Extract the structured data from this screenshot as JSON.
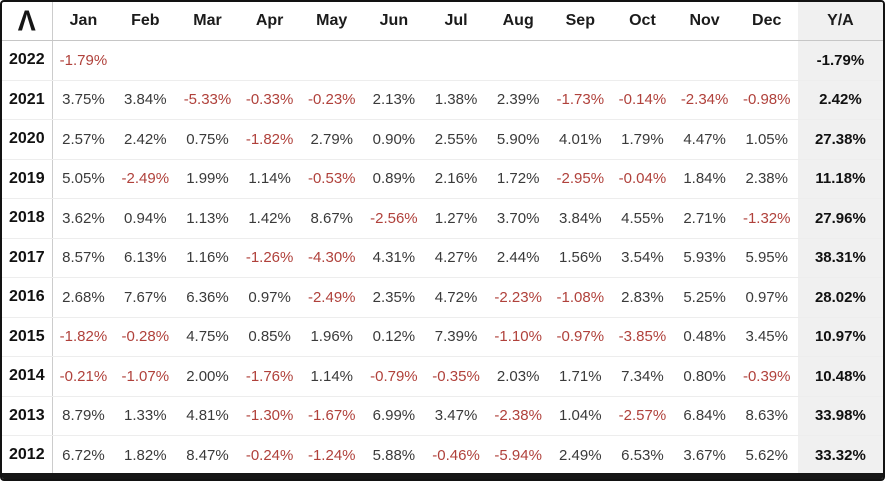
{
  "header": {
    "logo_glyph": "Λ",
    "ya_label": "Y/A"
  },
  "colors": {
    "negative_text": "#b0413b",
    "positive_text": "#3a3a3a",
    "ya_column_bg": "#f0f0f0",
    "frame_border": "#121212"
  },
  "chart_data": {
    "type": "table",
    "title": "",
    "categories": [
      "Jan",
      "Feb",
      "Mar",
      "Apr",
      "May",
      "Jun",
      "Jul",
      "Aug",
      "Sep",
      "Oct",
      "Nov",
      "Dec"
    ],
    "annual_column_label": "Y/A",
    "unit": "%",
    "rows": [
      {
        "year": "2022",
        "values": [
          -1.79,
          null,
          null,
          null,
          null,
          null,
          null,
          null,
          null,
          null,
          null,
          null
        ],
        "annual": -1.79
      },
      {
        "year": "2021",
        "values": [
          3.75,
          3.84,
          -5.33,
          -0.33,
          -0.23,
          2.13,
          1.38,
          2.39,
          -1.73,
          -0.14,
          -2.34,
          -0.98
        ],
        "annual": 2.42
      },
      {
        "year": "2020",
        "values": [
          2.57,
          2.42,
          0.75,
          -1.82,
          2.79,
          0.9,
          2.55,
          5.9,
          4.01,
          1.79,
          4.47,
          1.05
        ],
        "annual": 27.38
      },
      {
        "year": "2019",
        "values": [
          5.05,
          -2.49,
          1.99,
          1.14,
          -0.53,
          0.89,
          2.16,
          1.72,
          -2.95,
          -0.04,
          1.84,
          2.38
        ],
        "annual": 11.18
      },
      {
        "year": "2018",
        "values": [
          3.62,
          0.94,
          1.13,
          1.42,
          8.67,
          -2.56,
          1.27,
          3.7,
          3.84,
          4.55,
          2.71,
          -1.32
        ],
        "annual": 27.96
      },
      {
        "year": "2017",
        "values": [
          8.57,
          6.13,
          1.16,
          -1.26,
          -4.3,
          4.31,
          4.27,
          2.44,
          1.56,
          3.54,
          5.93,
          5.95
        ],
        "annual": 38.31
      },
      {
        "year": "2016",
        "values": [
          2.68,
          7.67,
          6.36,
          0.97,
          -2.49,
          2.35,
          4.72,
          -2.23,
          -1.08,
          2.83,
          5.25,
          0.97
        ],
        "annual": 28.02
      },
      {
        "year": "2015",
        "values": [
          -1.82,
          -0.28,
          4.75,
          0.85,
          1.96,
          0.12,
          7.39,
          -1.1,
          -0.97,
          -3.85,
          0.48,
          3.45
        ],
        "annual": 10.97
      },
      {
        "year": "2014",
        "values": [
          -0.21,
          -1.07,
          2.0,
          -1.76,
          1.14,
          -0.79,
          -0.35,
          2.03,
          1.71,
          7.34,
          0.8,
          -0.39
        ],
        "annual": 10.48
      },
      {
        "year": "2013",
        "values": [
          8.79,
          1.33,
          4.81,
          -1.3,
          -1.67,
          6.99,
          3.47,
          -2.38,
          1.04,
          -2.57,
          6.84,
          8.63
        ],
        "annual": 33.98
      },
      {
        "year": "2012",
        "values": [
          6.72,
          1.82,
          8.47,
          -0.24,
          -1.24,
          5.88,
          -0.46,
          -5.94,
          2.49,
          6.53,
          3.67,
          5.62
        ],
        "annual": 33.32
      }
    ]
  }
}
